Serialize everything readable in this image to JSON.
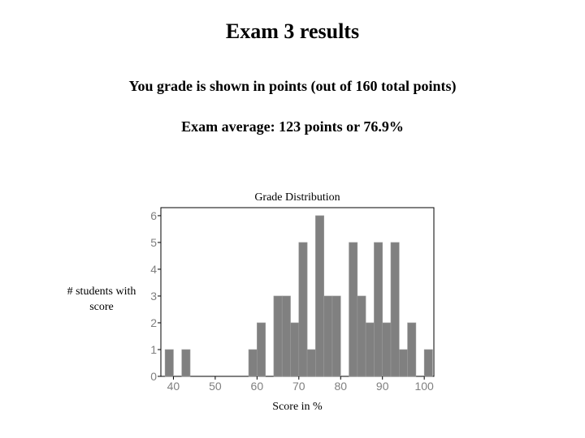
{
  "header": {
    "title": "Exam 3 results",
    "subtitle": "You grade is shown in points (out of 160 total points)",
    "average": "Exam average: 123 points or 76.9%"
  },
  "chart_data": {
    "type": "bar",
    "title": "Grade Distribution",
    "xlabel": "Score in %",
    "ylabel": "# students with score",
    "xlim": [
      37,
      102.3
    ],
    "ylim": [
      0,
      6.3
    ],
    "xticks": [
      40,
      50,
      60,
      70,
      80,
      90,
      100
    ],
    "yticks": [
      0,
      1,
      2,
      3,
      4,
      5,
      6
    ],
    "bin_width": 2,
    "grid": false,
    "bar_color": "#808080",
    "x": [
      39,
      43,
      59,
      61,
      65,
      67,
      69,
      71,
      73,
      75,
      77,
      79,
      83,
      85,
      87,
      89,
      91,
      93,
      95,
      97,
      101
    ],
    "values": [
      1,
      1,
      1,
      2,
      3,
      3,
      2,
      5,
      1,
      6,
      3,
      3,
      5,
      3,
      2,
      5,
      2,
      5,
      1,
      2,
      1
    ]
  }
}
